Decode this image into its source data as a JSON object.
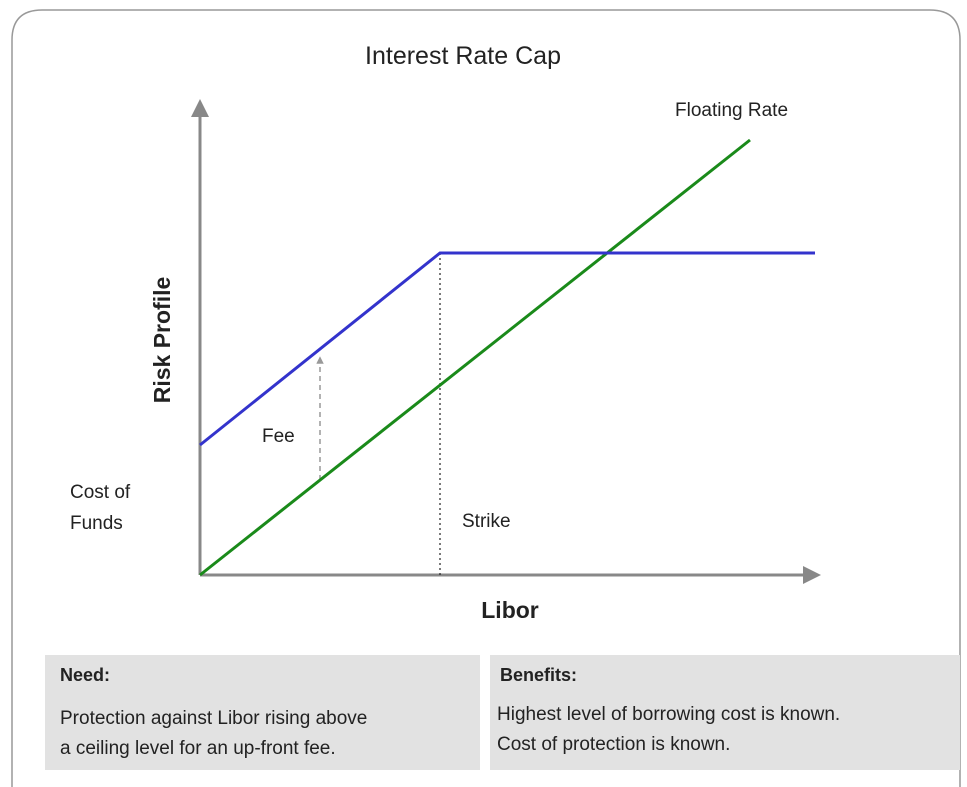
{
  "title": "Interest Rate Cap",
  "diagram": {
    "floating_rate_label": "Floating Rate",
    "y_axis_label": "Risk Profile",
    "x_axis_label": "Libor",
    "fee_label": "Fee",
    "cost_of_funds_label": [
      "Cost of",
      "Funds"
    ],
    "strike_label": "Strike"
  },
  "boxes": [
    {
      "heading": "Need:",
      "lines": [
        "Protection against Libor rising above",
        "a ceiling level for an up-front fee."
      ]
    },
    {
      "heading": "Benefits:",
      "lines": [
        "Highest level of borrowing cost is known.",
        "Cost of protection is known."
      ]
    }
  ]
}
